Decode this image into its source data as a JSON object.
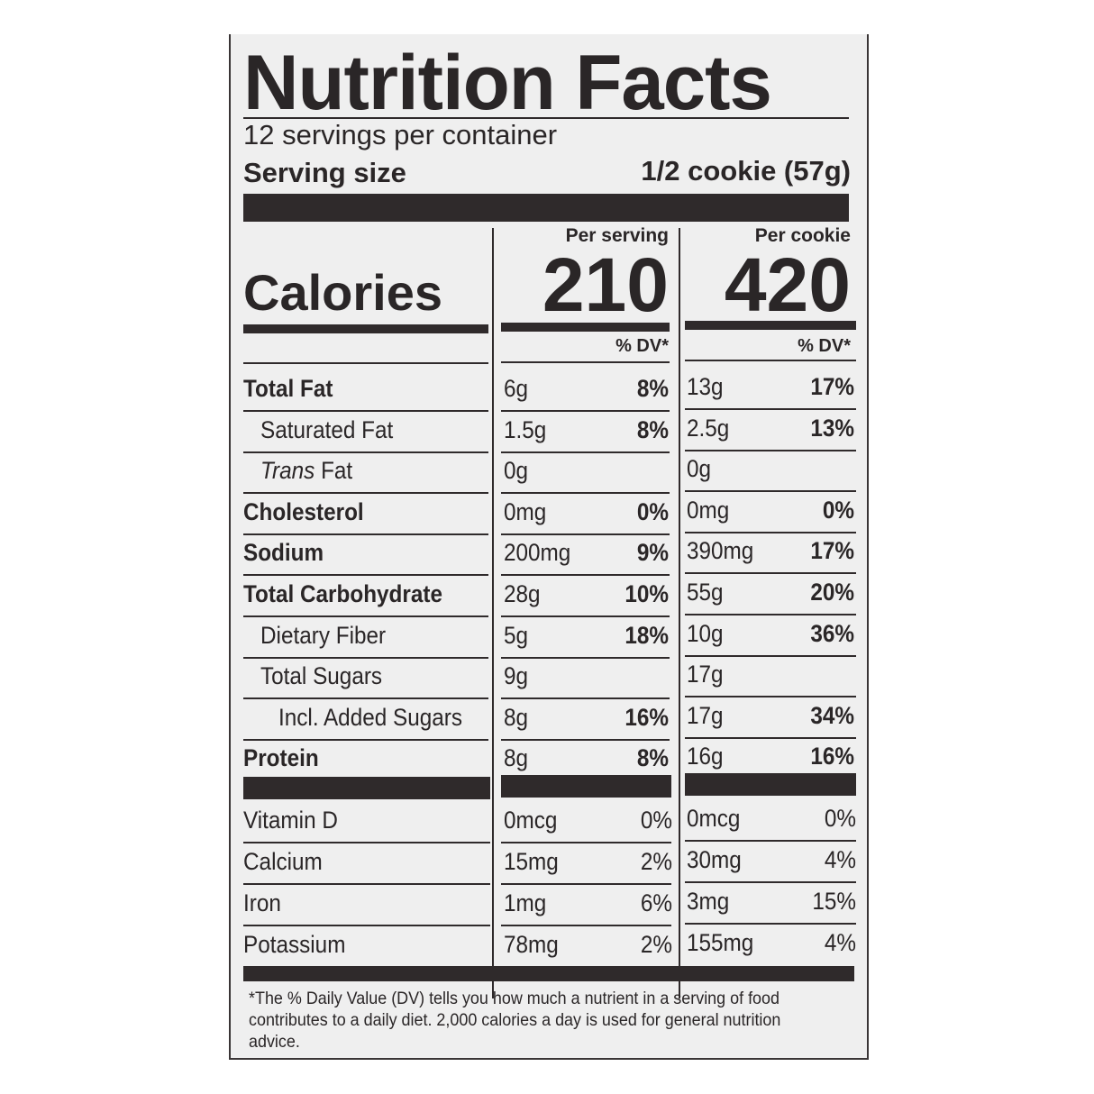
{
  "title": "Nutrition Facts",
  "servings_per_container": "12 servings per container",
  "serving_size_label": "Serving size",
  "serving_size_value": "1/2 cookie (57g)",
  "calories_label": "Calories",
  "columns": [
    {
      "header": "Per serving",
      "calories": "210",
      "dv_header": "% DV*"
    },
    {
      "header": "Per cookie",
      "calories": "420",
      "dv_header": "% DV*"
    }
  ],
  "nutrients": [
    {
      "name": "Total Fat",
      "bold": true,
      "indent": 0,
      "serving": [
        "6g",
        "8%"
      ],
      "cookie": [
        "13g",
        "17%"
      ]
    },
    {
      "name": "Saturated Fat",
      "bold": false,
      "indent": 1,
      "serving": [
        "1.5g",
        "8%"
      ],
      "cookie": [
        "2.5g",
        "13%"
      ]
    },
    {
      "name": "Trans Fat",
      "bold": false,
      "indent": 1,
      "italic_prefix": "Trans",
      "serving": [
        "0g",
        ""
      ],
      "cookie": [
        "0g",
        ""
      ]
    },
    {
      "name": "Cholesterol",
      "bold": true,
      "indent": 0,
      "serving": [
        "0mg",
        "0%"
      ],
      "cookie": [
        "0mg",
        "0%"
      ]
    },
    {
      "name": "Sodium",
      "bold": true,
      "indent": 0,
      "serving": [
        "200mg",
        "9%"
      ],
      "cookie": [
        "390mg",
        "17%"
      ]
    },
    {
      "name": "Total Carbohydrate",
      "bold": true,
      "indent": 0,
      "serving": [
        "28g",
        "10%"
      ],
      "cookie": [
        "55g",
        "20%"
      ]
    },
    {
      "name": "Dietary Fiber",
      "bold": false,
      "indent": 1,
      "serving": [
        "5g",
        "18%"
      ],
      "cookie": [
        "10g",
        "36%"
      ]
    },
    {
      "name": "Total Sugars",
      "bold": false,
      "indent": 1,
      "serving": [
        "9g",
        ""
      ],
      "cookie": [
        "17g",
        ""
      ]
    },
    {
      "name": "Incl. Added Sugars",
      "bold": false,
      "indent": 2,
      "serving": [
        "8g",
        "16%"
      ],
      "cookie": [
        "17g",
        "34%"
      ]
    },
    {
      "name": "Protein",
      "bold": true,
      "indent": 0,
      "serving": [
        "8g",
        "8%"
      ],
      "cookie": [
        "16g",
        "16%"
      ]
    }
  ],
  "vitamins": [
    {
      "name": "Vitamin D",
      "serving": [
        "0mcg",
        "0%"
      ],
      "cookie": [
        "0mcg",
        "0%"
      ]
    },
    {
      "name": "Calcium",
      "serving": [
        "15mg",
        "2%"
      ],
      "cookie": [
        "30mg",
        "4%"
      ]
    },
    {
      "name": "Iron",
      "serving": [
        "1mg",
        "6%"
      ],
      "cookie": [
        "3mg",
        "15%"
      ]
    },
    {
      "name": "Potassium",
      "serving": [
        "78mg",
        "2%"
      ],
      "cookie": [
        "155mg",
        "4%"
      ]
    }
  ],
  "footnote": "*The % Daily Value (DV) tells you how much a nutrient in a serving of food contributes to a daily diet. 2,000 calories a day is used for general nutrition advice."
}
